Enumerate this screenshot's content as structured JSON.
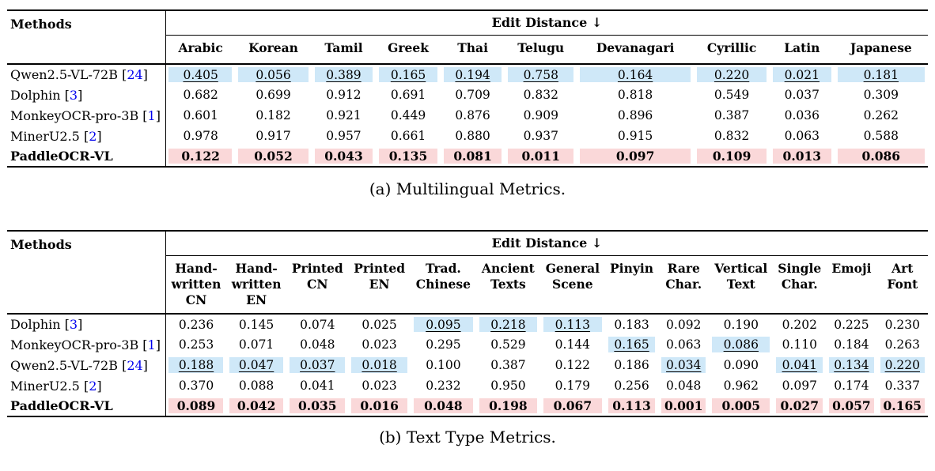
{
  "colors": {
    "best_row_highlight": "#fad8d9",
    "second_best_highlight": "#cfe8f8",
    "citation_link": "#0000ee",
    "rule": "#000000"
  },
  "tables": [
    {
      "id": "a",
      "caption": "(a) Multilingual Metrics.",
      "methods_header": "Methods",
      "group_header": "Edit Distance ↓",
      "columns": [
        "Arabic",
        "Korean",
        "Tamil",
        "Greek",
        "Thai",
        "Telugu",
        "Devanagari",
        "Cyrillic",
        "Latin",
        "Japanese"
      ],
      "rows": [
        {
          "method_label": "Qwen2.5-VL-72B",
          "citation": "24",
          "bold": false,
          "pink_row": false,
          "values": [
            "0.405",
            "0.056",
            "0.389",
            "0.165",
            "0.194",
            "0.758",
            "0.164",
            "0.220",
            "0.021",
            "0.181"
          ],
          "blue_cells": [
            0,
            1,
            2,
            3,
            4,
            5,
            6,
            7,
            8,
            9
          ],
          "underline_cells": [
            0,
            1,
            2,
            3,
            4,
            5,
            6,
            7,
            8,
            9
          ]
        },
        {
          "method_label": "Dolphin",
          "citation": "3",
          "bold": false,
          "pink_row": false,
          "values": [
            "0.682",
            "0.699",
            "0.912",
            "0.691",
            "0.709",
            "0.832",
            "0.818",
            "0.549",
            "0.037",
            "0.309"
          ],
          "blue_cells": [],
          "underline_cells": []
        },
        {
          "method_label": "MonkeyOCR-pro-3B",
          "citation": "1",
          "bold": false,
          "pink_row": false,
          "values": [
            "0.601",
            "0.182",
            "0.921",
            "0.449",
            "0.876",
            "0.909",
            "0.896",
            "0.387",
            "0.036",
            "0.262"
          ],
          "blue_cells": [],
          "underline_cells": []
        },
        {
          "method_label": "MinerU2.5",
          "citation": "2",
          "bold": false,
          "pink_row": false,
          "values": [
            "0.978",
            "0.917",
            "0.957",
            "0.661",
            "0.880",
            "0.937",
            "0.915",
            "0.832",
            "0.063",
            "0.588"
          ],
          "blue_cells": [],
          "underline_cells": []
        },
        {
          "method_label": "PaddleOCR-VL",
          "citation": null,
          "bold": true,
          "pink_row": true,
          "values": [
            "0.122",
            "0.052",
            "0.043",
            "0.135",
            "0.081",
            "0.011",
            "0.097",
            "0.109",
            "0.013",
            "0.086"
          ],
          "blue_cells": [],
          "underline_cells": []
        }
      ]
    },
    {
      "id": "b",
      "caption": "(b) Text Type Metrics.",
      "methods_header": "Methods",
      "group_header": "Edit Distance ↓",
      "columns": [
        [
          "Hand-",
          "written",
          "CN"
        ],
        [
          "Hand-",
          "written",
          "EN"
        ],
        [
          "Printed",
          "CN"
        ],
        [
          "Printed",
          "EN"
        ],
        [
          "Trad.",
          "Chinese"
        ],
        [
          "Ancient",
          "Texts"
        ],
        [
          "General",
          "Scene"
        ],
        [
          "Pinyin"
        ],
        [
          "Rare",
          "Char."
        ],
        [
          "Vertical",
          "Text"
        ],
        [
          "Single",
          "Char."
        ],
        [
          "Emoji"
        ],
        [
          "Art",
          "Font"
        ]
      ],
      "rows": [
        {
          "method_label": "Dolphin",
          "citation": "3",
          "bold": false,
          "pink_row": false,
          "values": [
            "0.236",
            "0.145",
            "0.074",
            "0.025",
            "0.095",
            "0.218",
            "0.113",
            "0.183",
            "0.092",
            "0.190",
            "0.202",
            "0.225",
            "0.230"
          ],
          "blue_cells": [
            4,
            5,
            6
          ],
          "underline_cells": [
            4,
            5,
            6
          ]
        },
        {
          "method_label": "MonkeyOCR-pro-3B",
          "citation": "1",
          "bold": false,
          "pink_row": false,
          "values": [
            "0.253",
            "0.071",
            "0.048",
            "0.023",
            "0.295",
            "0.529",
            "0.144",
            "0.165",
            "0.063",
            "0.086",
            "0.110",
            "0.184",
            "0.263"
          ],
          "blue_cells": [
            7,
            9
          ],
          "underline_cells": [
            7,
            9
          ]
        },
        {
          "method_label": "Qwen2.5-VL-72B",
          "citation": "24",
          "bold": false,
          "pink_row": false,
          "values": [
            "0.188",
            "0.047",
            "0.037",
            "0.018",
            "0.100",
            "0.387",
            "0.122",
            "0.186",
            "0.034",
            "0.090",
            "0.041",
            "0.134",
            "0.220"
          ],
          "blue_cells": [
            0,
            1,
            2,
            3,
            8,
            10,
            11,
            12
          ],
          "underline_cells": [
            0,
            1,
            2,
            3,
            8,
            10,
            11,
            12
          ]
        },
        {
          "method_label": "MinerU2.5",
          "citation": "2",
          "bold": false,
          "pink_row": false,
          "values": [
            "0.370",
            "0.088",
            "0.041",
            "0.023",
            "0.232",
            "0.950",
            "0.179",
            "0.256",
            "0.048",
            "0.962",
            "0.097",
            "0.174",
            "0.337"
          ],
          "blue_cells": [],
          "underline_cells": []
        },
        {
          "method_label": "PaddleOCR-VL",
          "citation": null,
          "bold": true,
          "pink_row": true,
          "values": [
            "0.089",
            "0.042",
            "0.035",
            "0.016",
            "0.048",
            "0.198",
            "0.067",
            "0.113",
            "0.001",
            "0.005",
            "0.027",
            "0.057",
            "0.165"
          ],
          "blue_cells": [],
          "underline_cells": []
        }
      ]
    }
  ]
}
